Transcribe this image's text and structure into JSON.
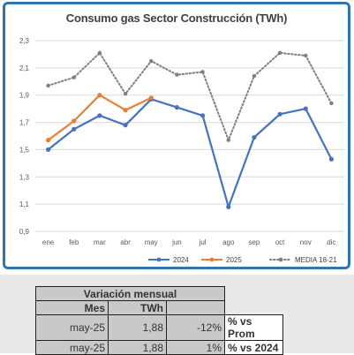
{
  "chart_data": {
    "type": "line",
    "title": "Consumo gas Sector Construcción (TWh)",
    "categories": [
      "ene",
      "feb",
      "mar",
      "abr",
      "may",
      "jun",
      "jul",
      "ago",
      "sep",
      "oct",
      "nov",
      "dic"
    ],
    "ylim": [
      0.9,
      2.3
    ],
    "yticks": [
      "0,9",
      "1,1",
      "1,3",
      "1,5",
      "1,7",
      "1,9",
      "2,1",
      "2,3"
    ],
    "ytick_values": [
      0.9,
      1.1,
      1.3,
      1.5,
      1.7,
      1.9,
      2.1,
      2.3
    ],
    "grid": true,
    "legend_position": "bottom",
    "series": [
      {
        "name": "2024",
        "color": "#4472c4",
        "style": "solid",
        "values": [
          1.5,
          1.65,
          1.75,
          1.68,
          1.87,
          1.81,
          1.75,
          1.08,
          1.59,
          1.76,
          1.8,
          1.43
        ]
      },
      {
        "name": "2025",
        "color": "#ed7d31",
        "style": "solid",
        "values": [
          1.57,
          1.71,
          1.9,
          1.79,
          1.88,
          null,
          null,
          null,
          null,
          null,
          null,
          null
        ]
      },
      {
        "name": "MEDIA 18-21",
        "color": "#7f7f7f",
        "style": "dotted",
        "values": [
          1.97,
          2.03,
          2.21,
          1.91,
          2.15,
          2.05,
          2.07,
          1.57,
          2.04,
          2.21,
          2.19,
          1.84
        ]
      }
    ]
  },
  "table": {
    "title": "Variación mensual",
    "headers": [
      "Mes",
      "TWh"
    ],
    "rows": [
      {
        "mes": "may-25",
        "twh": "1,88",
        "pct": "-12%",
        "label": "% vs Prom"
      },
      {
        "mes": "may-25",
        "twh": "1,88",
        "pct": "1%",
        "label": "% vs 2024"
      }
    ]
  }
}
